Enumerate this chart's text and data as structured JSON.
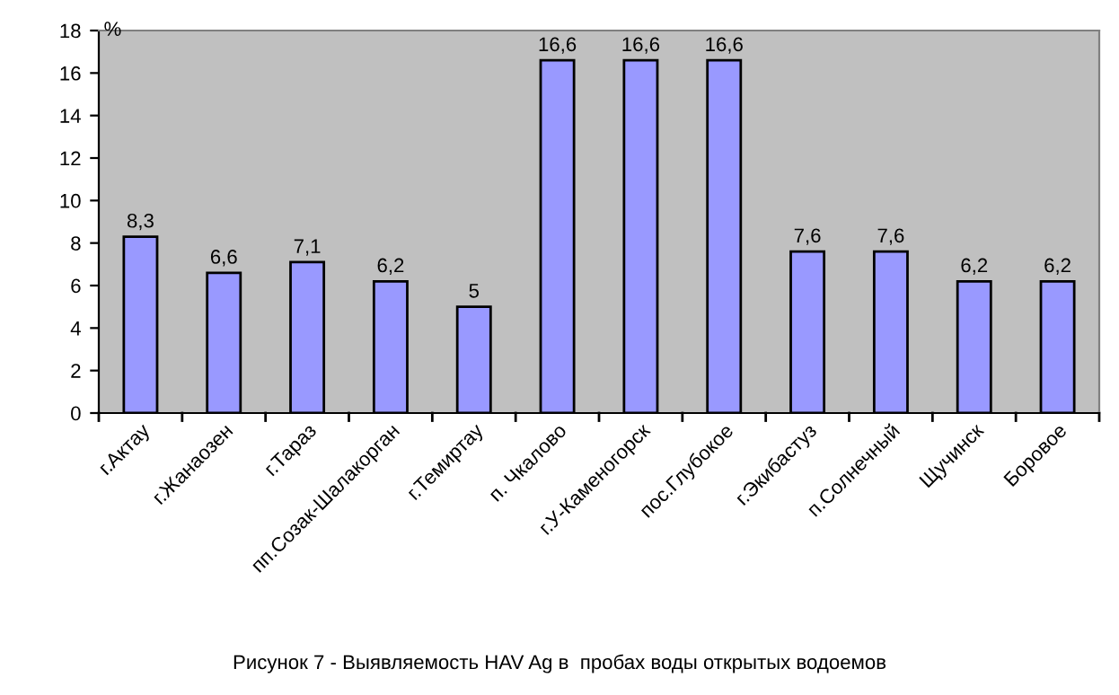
{
  "chart_data": {
    "type": "bar",
    "categories": [
      "г.Актау",
      "г.Жанаозен",
      "г.Тараз",
      "пп.Созак-Шалакорган",
      "г.Темиртау",
      "п. Чкалово",
      "г.У-Каменогорск",
      "пос.Глубокое",
      "г.Экибастуз",
      "п.Солнечный",
      "Щучинск",
      "Боровое"
    ],
    "values": [
      8.3,
      6.6,
      7.1,
      6.2,
      5,
      16.6,
      16.6,
      16.6,
      7.6,
      7.6,
      6.2,
      6.2
    ],
    "value_labels": [
      "8,3",
      "6,6",
      "7,1",
      "6,2",
      "5",
      "16,6",
      "16,6",
      "16,6",
      "7,6",
      "7,6",
      "6,2",
      "6,2"
    ],
    "color": "#9999ff",
    "ylabel": "%",
    "ylim": [
      0,
      18
    ],
    "yticks": [
      0,
      2,
      4,
      6,
      8,
      10,
      12,
      14,
      16,
      18
    ],
    "grid": false,
    "annotations": [
      "Рисунок 7 - Выявляемость HAV Ag в  пробах воды открытых водоемов"
    ]
  }
}
